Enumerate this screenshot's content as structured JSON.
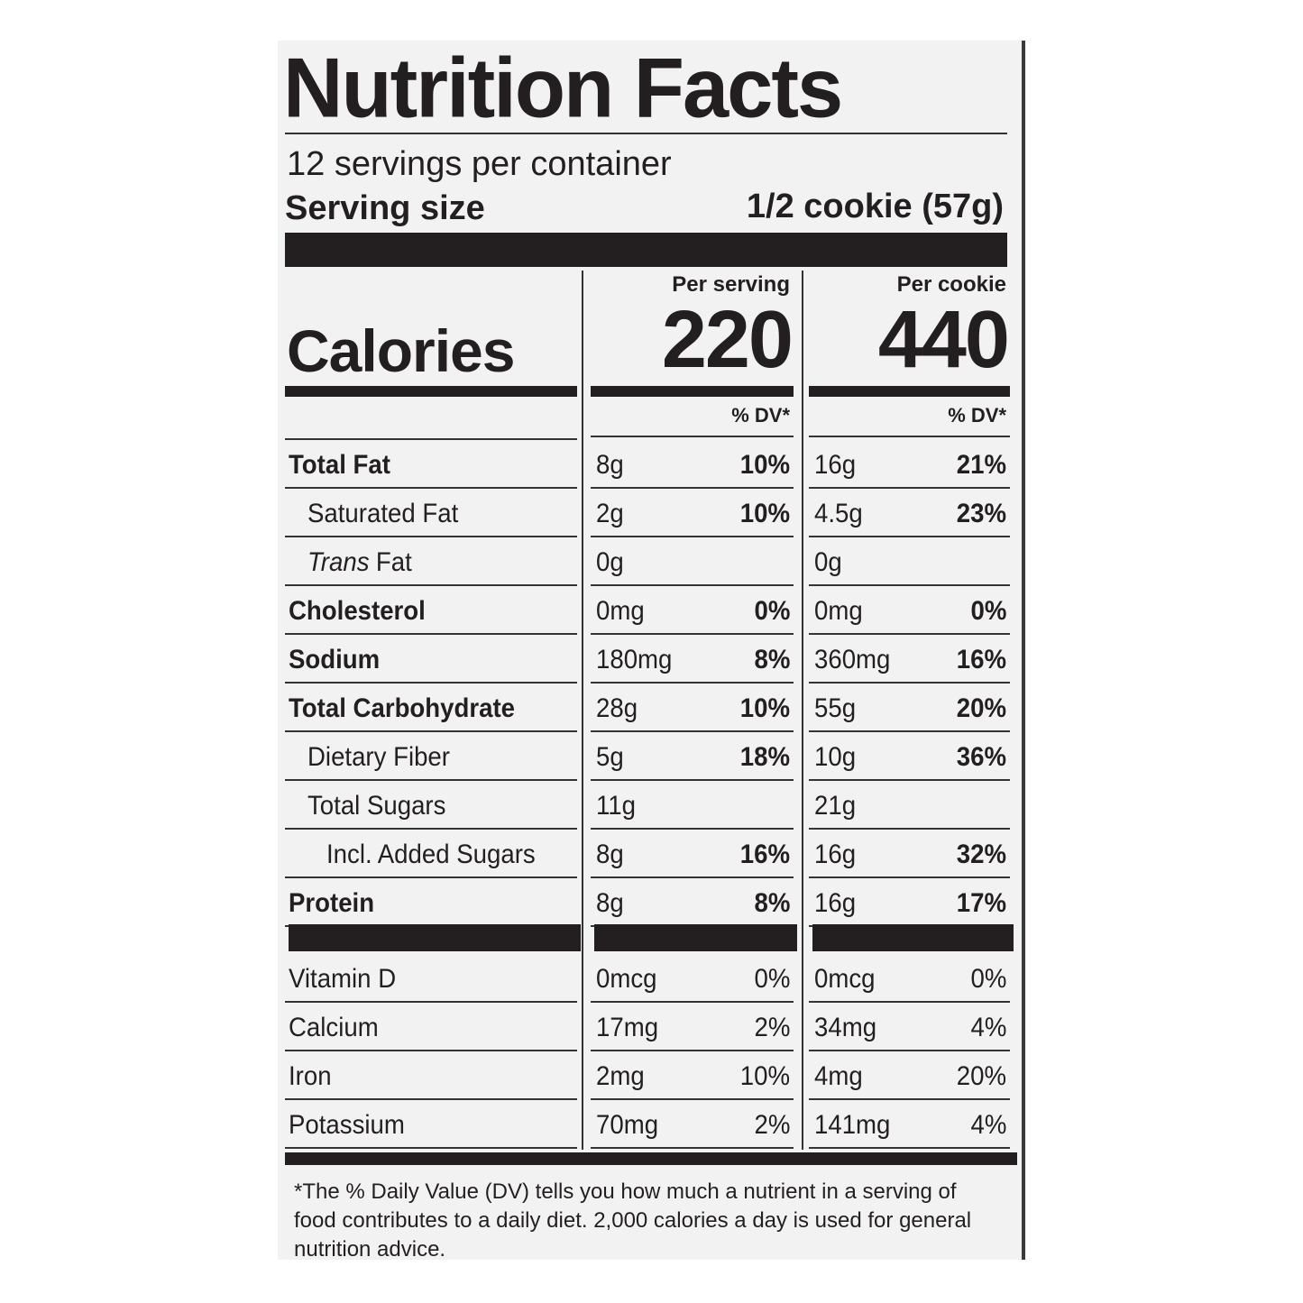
{
  "title": "Nutrition Facts",
  "servings": "12 servings per container",
  "serving_size": {
    "label": "Serving size",
    "value": "1/2 cookie (57g)"
  },
  "calories": {
    "label": "Calories",
    "columns": [
      {
        "header": "Per serving",
        "value": "220"
      },
      {
        "header": "Per cookie",
        "value": "440"
      }
    ]
  },
  "dv_header": "% DV*",
  "nutrients": [
    {
      "label": "Total Fat",
      "per_serving": {
        "amount": "8g",
        "dv": "10%"
      },
      "per_cookie": {
        "amount": "16g",
        "dv": "21%"
      }
    },
    {
      "label": "Saturated Fat",
      "per_serving": {
        "amount": "2g",
        "dv": "10%"
      },
      "per_cookie": {
        "amount": "4.5g",
        "dv": "23%"
      }
    },
    {
      "label": [
        "Trans",
        "Fat"
      ],
      "per_serving": {
        "amount": "0g"
      },
      "per_cookie": {
        "amount": "0g"
      }
    },
    {
      "label": "Cholesterol",
      "per_serving": {
        "amount": "0mg",
        "dv": "0%"
      },
      "per_cookie": {
        "amount": "0mg",
        "dv": "0%"
      }
    },
    {
      "label": "Sodium",
      "per_serving": {
        "amount": "180mg",
        "dv": "8%"
      },
      "per_cookie": {
        "amount": "360mg",
        "dv": "16%"
      }
    },
    {
      "label": "Total Carbohydrate",
      "per_serving": {
        "amount": "28g",
        "dv": "10%"
      },
      "per_cookie": {
        "amount": "55g",
        "dv": "20%"
      }
    },
    {
      "label": "Dietary Fiber",
      "per_serving": {
        "amount": "5g",
        "dv": "18%"
      },
      "per_cookie": {
        "amount": "10g",
        "dv": "36%"
      }
    },
    {
      "label": "Total Sugars",
      "per_serving": {
        "amount": "11g"
      },
      "per_cookie": {
        "amount": "21g"
      }
    },
    {
      "label": "Incl. Added Sugars",
      "per_serving": {
        "amount": "8g",
        "dv": "16%"
      },
      "per_cookie": {
        "amount": "16g",
        "dv": "32%"
      }
    },
    {
      "label": "Protein",
      "per_serving": {
        "amount": "8g",
        "dv": "8%"
      },
      "per_cookie": {
        "amount": "16g",
        "dv": "17%"
      }
    }
  ],
  "vitamins": [
    {
      "label": "Vitamin D",
      "per_serving": {
        "amount": "0mcg",
        "dv": "0%"
      },
      "per_cookie": {
        "amount": "0mcg",
        "dv": "0%"
      }
    },
    {
      "label": "Calcium",
      "per_serving": {
        "amount": "17mg",
        "dv": "2%"
      },
      "per_cookie": {
        "amount": "34mg",
        "dv": "4%"
      }
    },
    {
      "label": "Iron",
      "per_serving": {
        "amount": "2mg",
        "dv": "10%"
      },
      "per_cookie": {
        "amount": "4mg",
        "dv": "20%"
      }
    },
    {
      "label": "Potassium",
      "per_serving": {
        "amount": "70mg",
        "dv": "2%"
      },
      "per_cookie": {
        "amount": "141mg",
        "dv": "4%"
      }
    }
  ],
  "footnote": "*The % Daily Value (DV) tells you how much a nutrient in a serving of food contributes to a daily diet. 2,000 calories a day is used for general nutrition advice."
}
